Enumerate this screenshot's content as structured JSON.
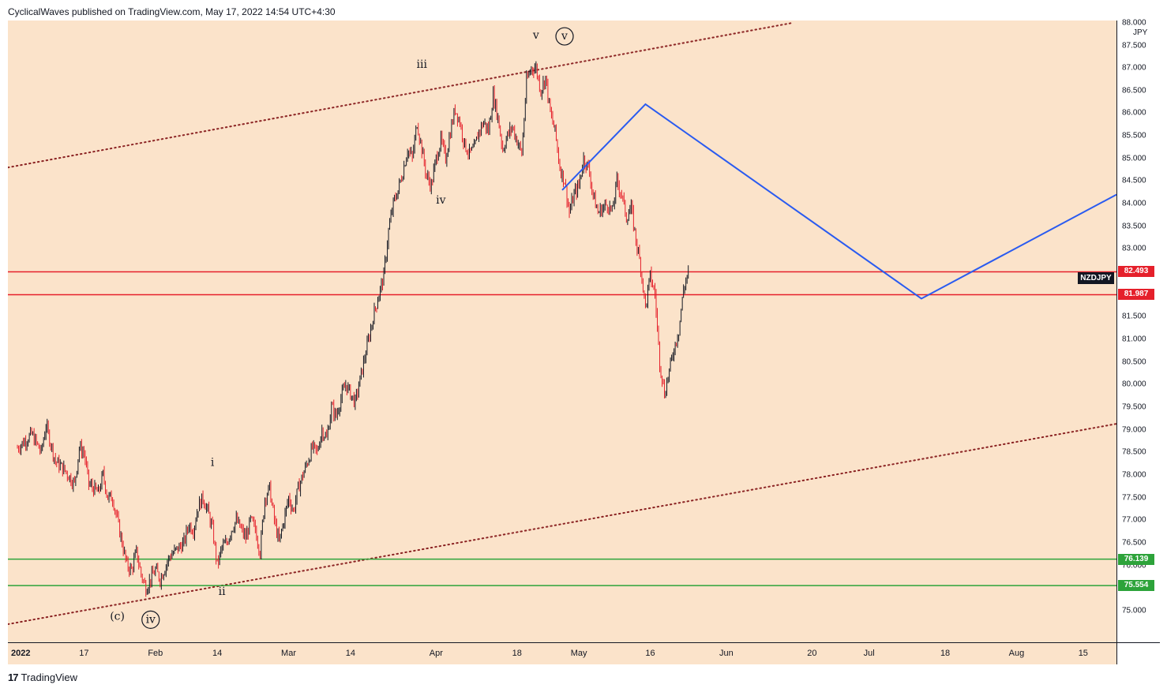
{
  "header": {
    "text": "CyclicalWaves published on TradingView.com, May 17, 2022 14:54 UTC+4:30"
  },
  "footer": {
    "logo": "17",
    "brand": "TradingView"
  },
  "chart_data": {
    "type": "candlestick",
    "symbol": "NZDJPY",
    "currency": "JPY",
    "ylim": [
      74.3,
      88.05
    ],
    "y_ticks": [
      "88.000",
      "87.500",
      "87.000",
      "86.500",
      "86.000",
      "85.500",
      "85.000",
      "84.500",
      "84.000",
      "83.500",
      "83.000",
      "82.500",
      "82.000",
      "81.500",
      "81.000",
      "80.500",
      "80.000",
      "79.500",
      "79.000",
      "78.500",
      "78.000",
      "77.500",
      "77.000",
      "76.500",
      "76.000",
      "75.500",
      "75.000"
    ],
    "x_ticks": [
      {
        "label": "2022",
        "day": 0
      },
      {
        "label": "17",
        "day": 14
      },
      {
        "label": "Feb",
        "day": 29
      },
      {
        "label": "14",
        "day": 42
      },
      {
        "label": "Mar",
        "day": 57
      },
      {
        "label": "14",
        "day": 70
      },
      {
        "label": "Apr",
        "day": 88
      },
      {
        "label": "18",
        "day": 105
      },
      {
        "label": "May",
        "day": 118
      },
      {
        "label": "16",
        "day": 133
      },
      {
        "label": "Jun",
        "day": 149
      },
      {
        "label": "20",
        "day": 167
      },
      {
        "label": "Jul",
        "day": 179
      },
      {
        "label": "18",
        "day": 195
      },
      {
        "label": "Aug",
        "day": 210
      },
      {
        "label": "15",
        "day": 224
      }
    ],
    "xlim_days": [
      -2,
      231
    ],
    "price_path": [
      [
        0,
        78.6
      ],
      [
        3,
        78.9
      ],
      [
        5,
        78.5
      ],
      [
        6,
        79.1
      ],
      [
        8,
        78.3
      ],
      [
        10,
        78.1
      ],
      [
        12,
        77.8
      ],
      [
        13,
        78.6
      ],
      [
        14,
        78.5
      ],
      [
        15,
        77.8
      ],
      [
        17,
        77.6
      ],
      [
        18,
        78.0
      ],
      [
        19,
        77.5
      ],
      [
        20,
        77.5
      ],
      [
        21,
        77.0
      ],
      [
        22,
        76.5
      ],
      [
        23,
        76.0
      ],
      [
        24,
        75.9
      ],
      [
        25,
        76.3
      ],
      [
        26,
        75.8
      ],
      [
        27,
        75.5
      ],
      [
        28,
        75.7
      ],
      [
        29,
        75.9
      ],
      [
        30,
        75.7
      ],
      [
        32,
        76.2
      ],
      [
        33,
        76.3
      ],
      [
        35,
        76.5
      ],
      [
        36,
        76.9
      ],
      [
        37,
        76.8
      ],
      [
        38,
        77.3
      ],
      [
        39,
        77.5
      ],
      [
        40,
        77.2
      ],
      [
        41,
        76.8
      ],
      [
        42,
        76.0
      ],
      [
        43,
        76.4
      ],
      [
        44,
        76.5
      ],
      [
        45,
        76.8
      ],
      [
        46,
        77.0
      ],
      [
        48,
        76.6
      ],
      [
        49,
        77.0
      ],
      [
        50,
        76.8
      ],
      [
        51,
        76.3
      ],
      [
        52,
        77.5
      ],
      [
        53,
        77.7
      ],
      [
        54,
        77.0
      ],
      [
        55,
        76.5
      ],
      [
        56,
        77.0
      ],
      [
        57,
        77.5
      ],
      [
        58,
        77.2
      ],
      [
        59,
        77.7
      ],
      [
        60,
        78.0
      ],
      [
        61,
        78.3
      ],
      [
        62,
        78.6
      ],
      [
        63,
        78.5
      ],
      [
        64,
        79.0
      ],
      [
        65,
        78.8
      ],
      [
        66,
        79.5
      ],
      [
        67,
        79.3
      ],
      [
        68,
        79.7
      ],
      [
        69,
        80.0
      ],
      [
        70,
        79.8
      ],
      [
        71,
        79.6
      ],
      [
        72,
        80.1
      ],
      [
        73,
        80.6
      ],
      [
        74,
        81.1
      ],
      [
        75,
        81.6
      ],
      [
        76,
        82.0
      ],
      [
        77,
        82.4
      ],
      [
        78,
        83.4
      ],
      [
        79,
        84.0
      ],
      [
        80,
        84.3
      ],
      [
        81,
        84.7
      ],
      [
        82,
        85.2
      ],
      [
        83,
        85.0
      ],
      [
        84,
        85.8
      ],
      [
        85,
        85.2
      ],
      [
        86,
        84.6
      ],
      [
        87,
        84.4
      ],
      [
        88,
        85.0
      ],
      [
        89,
        85.4
      ],
      [
        90,
        85.0
      ],
      [
        91,
        85.6
      ],
      [
        92,
        86.1
      ],
      [
        93,
        85.8
      ],
      [
        94,
        85.3
      ],
      [
        95,
        85.1
      ],
      [
        96,
        85.2
      ],
      [
        97,
        85.6
      ],
      [
        98,
        85.8
      ],
      [
        99,
        85.6
      ],
      [
        100,
        86.4
      ],
      [
        101,
        85.9
      ],
      [
        102,
        85.2
      ],
      [
        103,
        85.5
      ],
      [
        104,
        85.7
      ],
      [
        105,
        85.4
      ],
      [
        106,
        85.1
      ],
      [
        107,
        86.7
      ],
      [
        108,
        87.0
      ],
      [
        109,
        87.0
      ],
      [
        110,
        86.5
      ],
      [
        111,
        86.8
      ],
      [
        112,
        86.0
      ],
      [
        113,
        85.6
      ],
      [
        114,
        84.8
      ],
      [
        115,
        84.5
      ],
      [
        116,
        83.8
      ],
      [
        117,
        84.2
      ],
      [
        118,
        84.4
      ],
      [
        119,
        85.0
      ],
      [
        120,
        84.8
      ],
      [
        121,
        84.2
      ],
      [
        122,
        83.8
      ],
      [
        123,
        83.9
      ],
      [
        124,
        84.0
      ],
      [
        125,
        83.8
      ],
      [
        126,
        84.5
      ],
      [
        127,
        84.2
      ],
      [
        128,
        83.7
      ],
      [
        129,
        83.9
      ],
      [
        130,
        83.2
      ],
      [
        131,
        82.6
      ],
      [
        132,
        81.7
      ],
      [
        133,
        82.4
      ],
      [
        134,
        82.0
      ],
      [
        135,
        80.5
      ],
      [
        136,
        79.8
      ],
      [
        137,
        80.3
      ],
      [
        138,
        80.8
      ],
      [
        139,
        81.2
      ],
      [
        140,
        82.1
      ],
      [
        141,
        82.5
      ]
    ],
    "levels": [
      {
        "value": 82.493,
        "label": "82.493",
        "color": "#e5202b"
      },
      {
        "value": 81.987,
        "label": "81.987",
        "color": "#e5202b"
      },
      {
        "value": 76.139,
        "label": "76.139",
        "color": "#2da33a"
      },
      {
        "value": 75.554,
        "label": "75.554",
        "color": "#2da33a"
      }
    ],
    "current_label": "NZDJPY",
    "channel": [
      {
        "from": [
          -2,
          84.8
        ],
        "to": [
          163,
          88.0
        ]
      },
      {
        "from": [
          -2,
          74.7
        ],
        "to": [
          232,
          79.15
        ]
      }
    ],
    "projection": [
      [
        114.5,
        84.3
      ],
      [
        132,
        86.2
      ],
      [
        190,
        81.9
      ],
      [
        231,
        84.2
      ]
    ],
    "wave_labels": [
      {
        "text": "iii",
        "day": 85,
        "price": 87.0
      },
      {
        "text": "iv",
        "day": 89,
        "price": 84.0
      },
      {
        "text": "v",
        "day": 109,
        "price": 87.65
      },
      {
        "text": "i",
        "day": 41,
        "price": 78.2
      },
      {
        "text": "ii",
        "day": 43,
        "price": 75.35
      },
      {
        "text": "(c)",
        "day": 21,
        "price": 74.8
      }
    ],
    "circled_labels": [
      {
        "text": "v",
        "day": 115,
        "price": 87.7
      },
      {
        "text": "iv",
        "day": 28,
        "price": 74.8
      }
    ]
  }
}
